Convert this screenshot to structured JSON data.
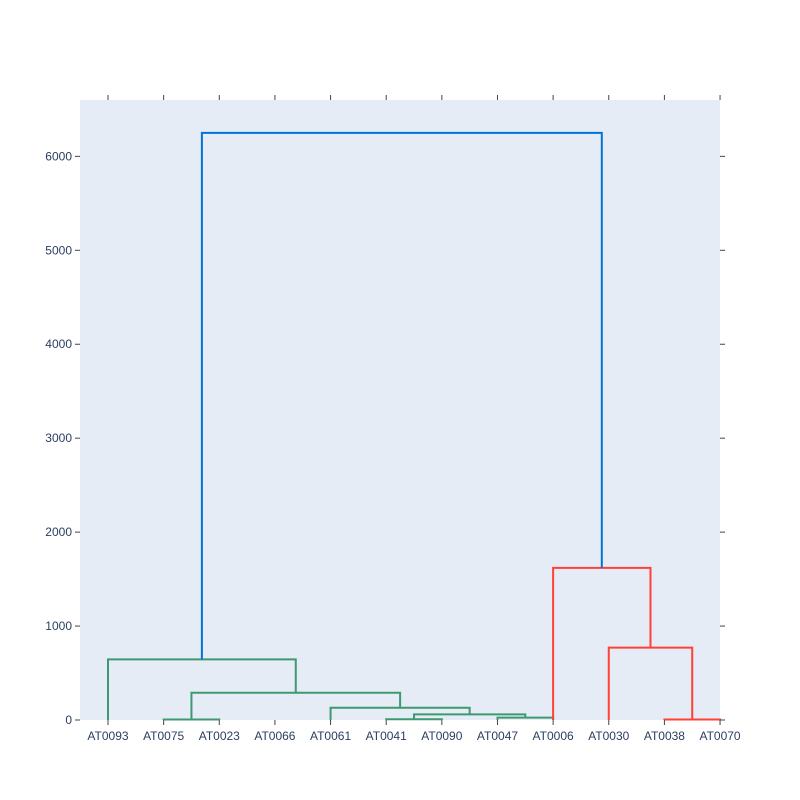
{
  "chart_data": {
    "type": "dendrogram",
    "title": "",
    "xlabel": "",
    "ylabel": "",
    "ylim": [
      0,
      6600
    ],
    "y_ticks": [
      0,
      1000,
      2000,
      3000,
      4000,
      5000,
      6000
    ],
    "y_tick_labels": [
      "0",
      "1000",
      "2000",
      "3000",
      "4000",
      "5000",
      "6000"
    ],
    "leaves": [
      "AT0093",
      "AT0075",
      "AT0023",
      "AT0066",
      "AT0061",
      "AT0041",
      "AT0090",
      "AT0047",
      "AT0006",
      "AT0030",
      "AT0038",
      "AT0070"
    ],
    "colors": {
      "cluster_green": "#3d9970",
      "cluster_red": "#ff4136",
      "root_blue": "#0074d9",
      "plot_background": "#e5ecf6",
      "tick_text": "#2a3f5f",
      "tick_line": "#444444"
    },
    "links": [
      {
        "x": [
          1,
          1,
          2,
          2
        ],
        "y": [
          0,
          5,
          5,
          0
        ],
        "color": "cluster_green"
      },
      {
        "x": [
          5,
          5,
          6,
          6
        ],
        "y": [
          0,
          8,
          8,
          0
        ],
        "color": "cluster_green"
      },
      {
        "x": [
          7,
          7,
          8,
          8
        ],
        "y": [
          0,
          25,
          25,
          0
        ],
        "color": "cluster_green"
      },
      {
        "x": [
          5.5,
          5.5,
          7.5,
          7.5
        ],
        "y": [
          8,
          60,
          60,
          25
        ],
        "color": "cluster_green"
      },
      {
        "x": [
          4,
          4,
          6.5,
          6.5
        ],
        "y": [
          0,
          130,
          130,
          60
        ],
        "color": "cluster_green"
      },
      {
        "x": [
          1.5,
          1.5,
          5.25,
          5.25
        ],
        "y": [
          5,
          290,
          290,
          130
        ],
        "color": "cluster_green"
      },
      {
        "x": [
          0,
          0,
          3.375,
          3.375
        ],
        "y": [
          0,
          645,
          645,
          290
        ],
        "color": "cluster_green"
      },
      {
        "x": [
          10,
          10,
          11,
          11
        ],
        "y": [
          0,
          5,
          5,
          0
        ],
        "color": "cluster_red"
      },
      {
        "x": [
          9,
          9,
          10.5,
          10.5
        ],
        "y": [
          0,
          770,
          770,
          5
        ],
        "color": "cluster_red"
      },
      {
        "x": [
          8,
          8,
          9.75,
          9.75
        ],
        "y": [
          0,
          1620,
          1620,
          770
        ],
        "color": "cluster_red"
      },
      {
        "x": [
          1.6875,
          1.6875,
          8.875,
          8.875
        ],
        "y": [
          645,
          6250,
          6250,
          1620
        ],
        "color": "root_blue"
      }
    ]
  }
}
